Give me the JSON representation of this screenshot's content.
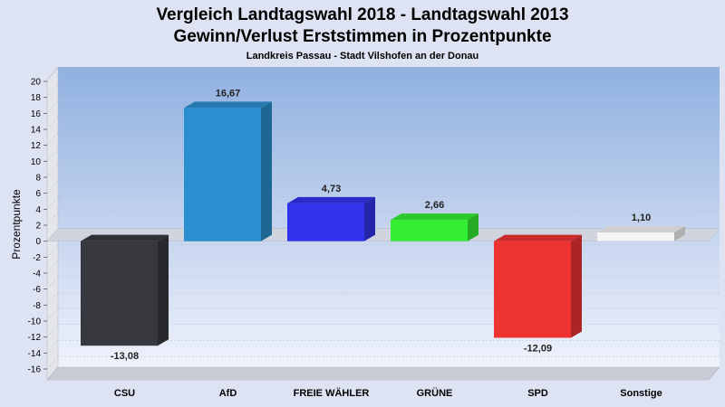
{
  "chart_data": {
    "type": "bar",
    "title": "Vergleich Landtagswahl 2018 - Landtagswahl 2013",
    "title_line2": "Gewinn/Verlust Erststimmen in Prozentpunkte",
    "subtitle": "Landkreis Passau - Stadt Vilshofen an der Donau",
    "ylabel": "Prozentpunkte",
    "xlabel": "",
    "ylim": [
      -16,
      20
    ],
    "ytick_step": 2,
    "yticks": [
      "20",
      "18",
      "16",
      "14",
      "12",
      "10",
      "8",
      "6",
      "4",
      "2",
      "0",
      "-2",
      "-4",
      "-6",
      "-8",
      "-10",
      "-12",
      "-14",
      "-16"
    ],
    "grid": true,
    "legend": "none",
    "categories": [
      "CSU",
      "AfD",
      "FREIE WÄHLER",
      "GRÜNE",
      "SPD",
      "Sonstige"
    ],
    "values": [
      -13.08,
      16.67,
      4.73,
      2.66,
      -12.09,
      1.1
    ],
    "value_labels": [
      "-13,08",
      "16,67",
      "4,73",
      "2,66",
      "-12,09",
      "1,10"
    ],
    "colors": [
      "#37393e",
      "#2a8fcf",
      "#3333ee",
      "#33ee33",
      "#ee3333",
      "#f4f4f4"
    ],
    "style": "3d"
  }
}
